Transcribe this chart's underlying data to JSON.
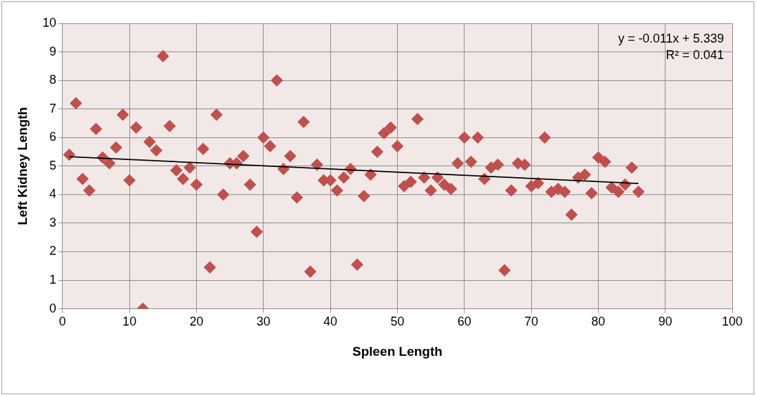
{
  "chart_data": {
    "type": "scatter",
    "xlabel": "Spleen Length",
    "ylabel": "Left Kidney Length",
    "xlim": [
      0,
      100
    ],
    "xticks": [
      0,
      10,
      20,
      30,
      40,
      50,
      60,
      70,
      80,
      90,
      100
    ],
    "ylim": [
      0,
      10
    ],
    "yticks": [
      0,
      1,
      2,
      3,
      4,
      5,
      6,
      7,
      8,
      9,
      10
    ],
    "grid": true,
    "legend": false,
    "marker": "diamond",
    "series": [
      {
        "color": "#c0504d",
        "x": [
          1,
          2,
          3,
          4,
          5,
          6,
          7,
          8,
          9,
          10,
          11,
          12,
          13,
          14,
          15,
          16,
          17,
          18,
          19,
          20,
          21,
          22,
          23,
          24,
          25,
          26,
          27,
          28,
          29,
          30,
          31,
          32,
          33,
          34,
          35,
          36,
          37,
          38,
          39,
          40,
          41,
          42,
          43,
          44,
          45,
          46,
          47,
          48,
          49,
          50,
          51,
          52,
          53,
          54,
          55,
          56,
          57,
          58,
          59,
          60,
          61,
          62,
          63,
          64,
          65,
          66,
          67,
          68,
          69,
          70,
          71,
          72,
          73,
          74,
          75,
          76,
          77,
          78,
          79,
          80,
          81,
          82,
          83,
          84,
          85,
          86
        ],
        "values": [
          5.4,
          7.2,
          4.55,
          4.15,
          6.3,
          5.3,
          5.1,
          5.65,
          6.8,
          4.5,
          6.35,
          0,
          5.85,
          5.55,
          8.85,
          6.4,
          4.85,
          4.55,
          4.95,
          4.35,
          5.6,
          1.45,
          6.8,
          4,
          5.1,
          5.1,
          5.35,
          4.35,
          2.7,
          6,
          5.7,
          8,
          4.9,
          5.35,
          3.9,
          6.55,
          1.3,
          5.05,
          4.5,
          4.5,
          4.15,
          4.6,
          4.9,
          1.55,
          3.95,
          4.7,
          5.5,
          6.15,
          6.35,
          5.7,
          4.3,
          4.45,
          6.65,
          4.6,
          4.15,
          4.6,
          4.35,
          4.2,
          5.1,
          6,
          5.15,
          6,
          4.55,
          4.95,
          5.05,
          1.35,
          4.15,
          5.1,
          5.05,
          4.3,
          4.4,
          6,
          4.1,
          4.2,
          4.1,
          3.3,
          4.6,
          4.7,
          4.05,
          5.3,
          5.15,
          4.25,
          4.1,
          4.35,
          4.95,
          4.1
        ]
      },
      {
        "type": "line",
        "color": "#000000",
        "x": [
          1,
          86
        ],
        "values": [
          5.33,
          4.39
        ],
        "marker": "none"
      }
    ],
    "annotations": [
      "y = -0.011x + 5.339",
      "R² = 0.041"
    ]
  }
}
